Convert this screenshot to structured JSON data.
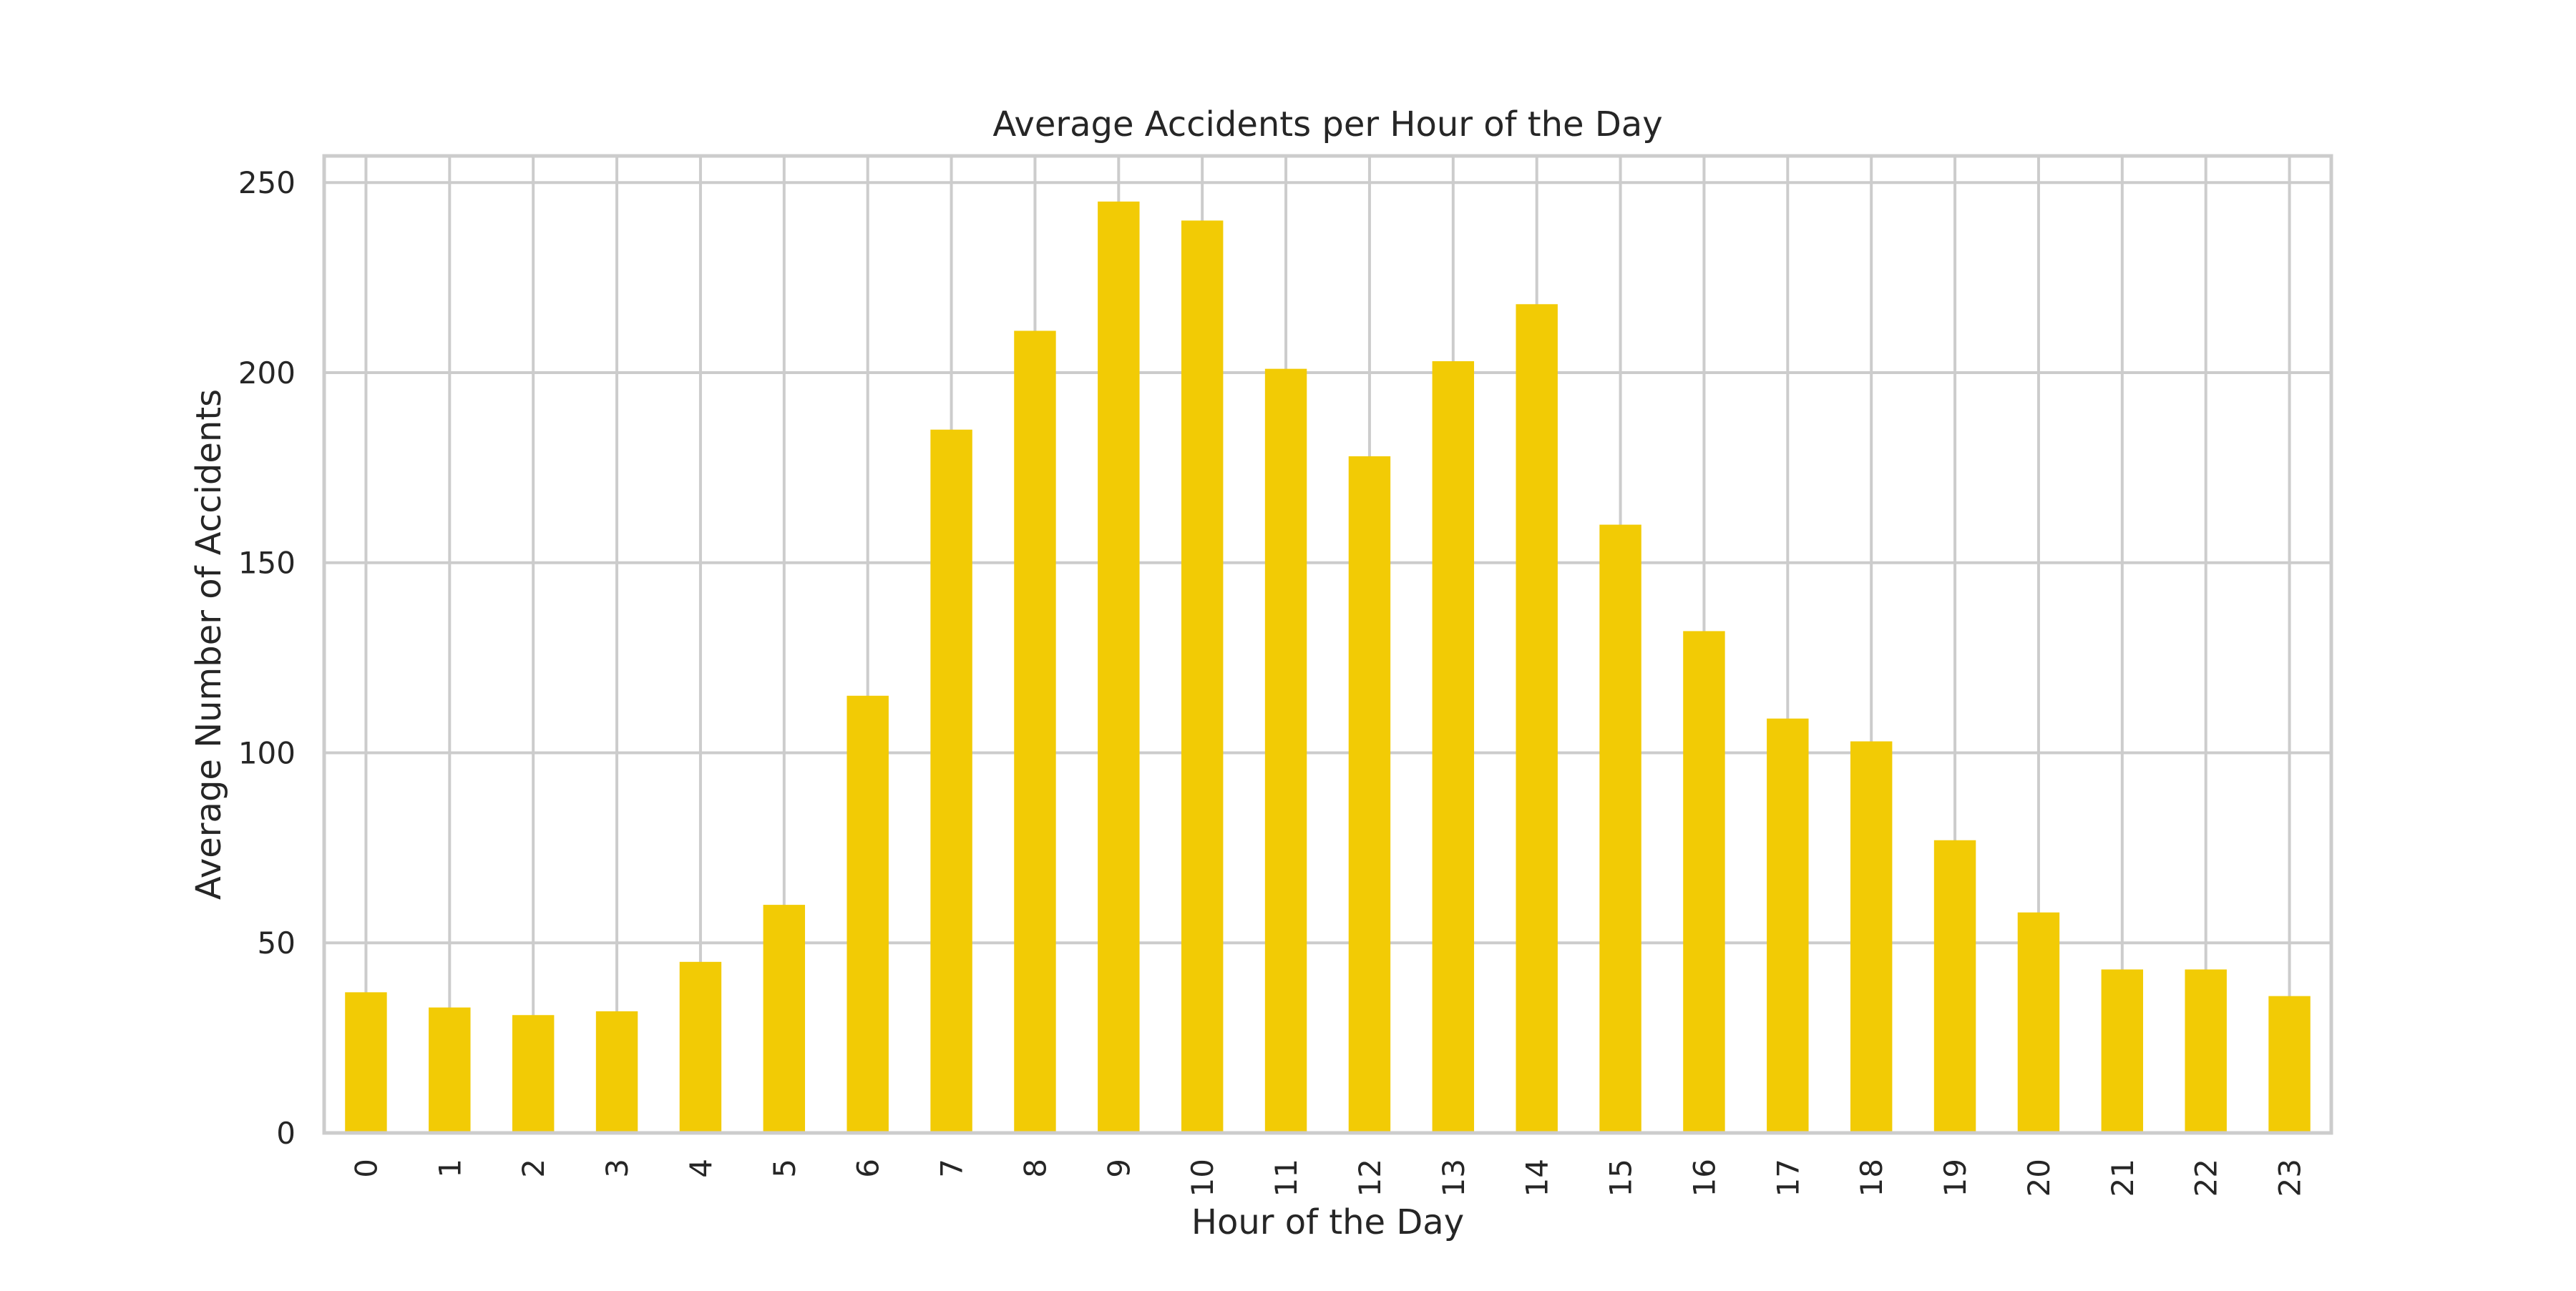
{
  "chart_data": {
    "type": "bar",
    "title": "Average Accidents per Hour of the Day",
    "xlabel": "Hour of the Day",
    "ylabel": "Average Number of Accidents",
    "categories": [
      "0",
      "1",
      "2",
      "3",
      "4",
      "5",
      "6",
      "7",
      "8",
      "9",
      "10",
      "11",
      "12",
      "13",
      "14",
      "15",
      "16",
      "17",
      "18",
      "19",
      "20",
      "21",
      "22",
      "23"
    ],
    "values": [
      37,
      33,
      31,
      32,
      45,
      60,
      115,
      185,
      211,
      245,
      240,
      201,
      178,
      203,
      218,
      160,
      132,
      109,
      103,
      77,
      58,
      43,
      43,
      36
    ],
    "ylim": [
      0,
      257
    ],
    "yticks": [
      "0",
      "50",
      "100",
      "150",
      "200",
      "250"
    ],
    "ytick_values": [
      0,
      50,
      100,
      150,
      200,
      250
    ],
    "grid": true,
    "x_tick_rotation": "vertical",
    "bar_color": "#f2cb05",
    "grid_color": "#cccccc",
    "frame_color": "#cccccc"
  }
}
